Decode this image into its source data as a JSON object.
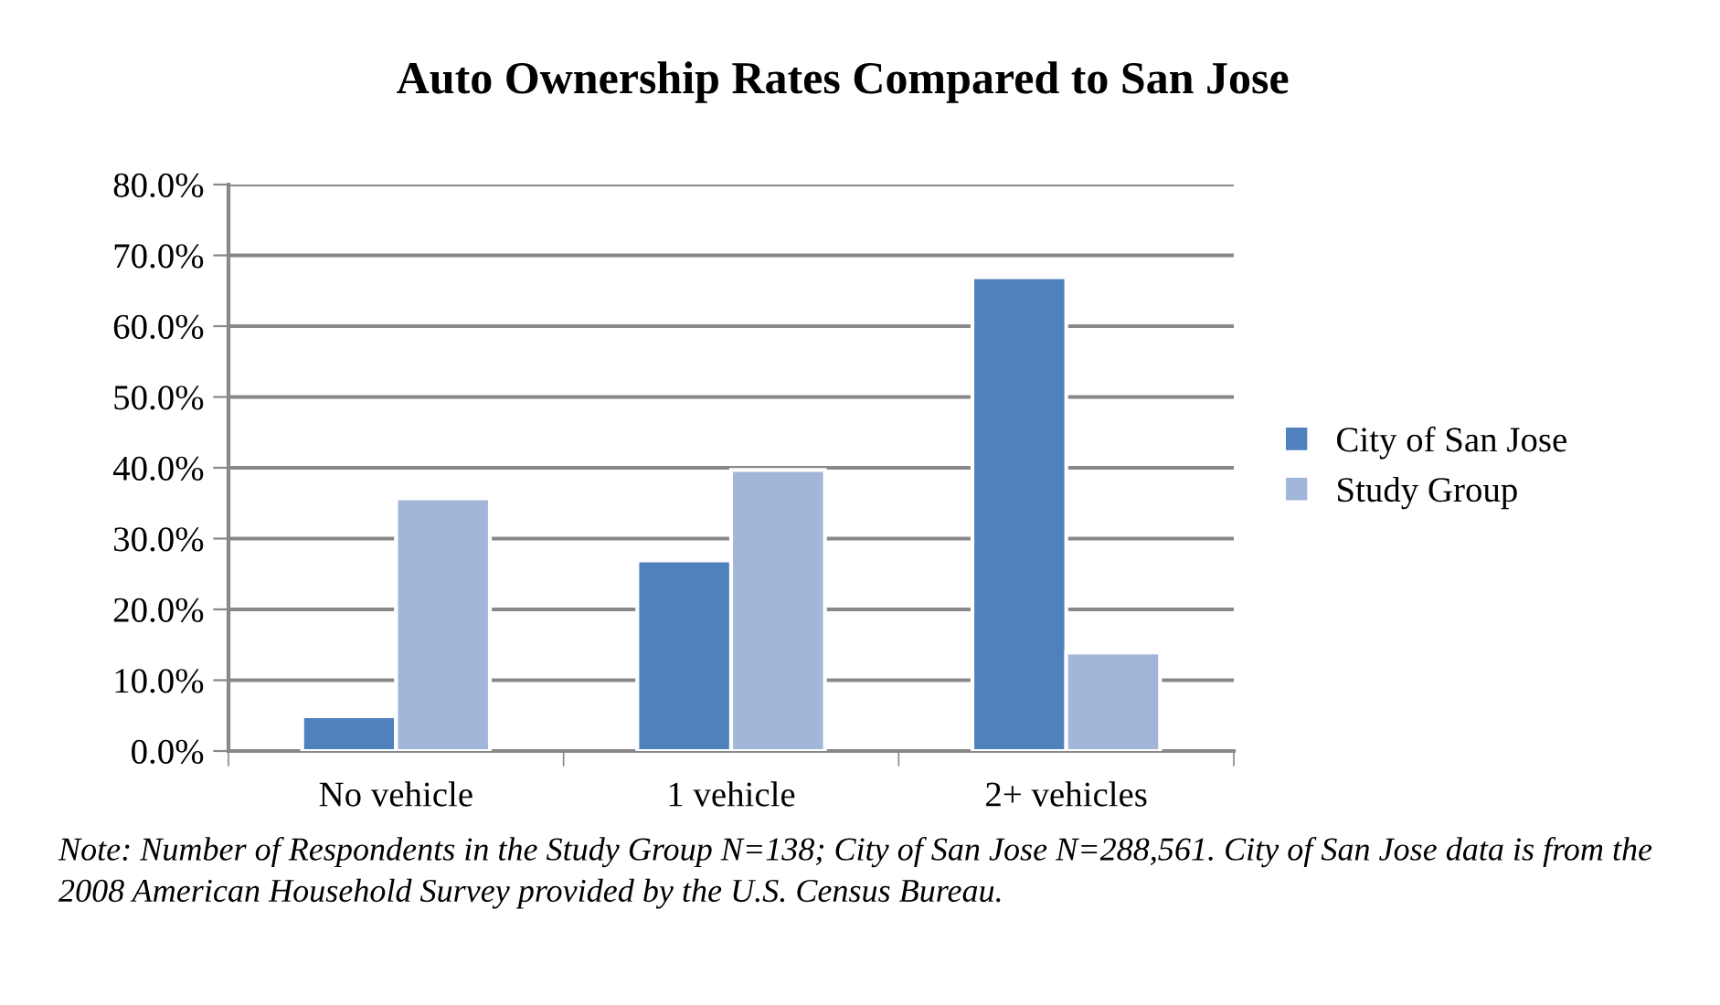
{
  "chart_data": {
    "type": "bar",
    "title": "Auto Ownership Rates Compared to San Jose",
    "categories": [
      "No vehicle",
      "1 vehicle",
      "2+ vehicles"
    ],
    "series": [
      {
        "name": "City of San Jose",
        "color": "#4f81bd",
        "values": [
          4.9,
          26.9,
          66.9
        ]
      },
      {
        "name": "Study Group",
        "color": "#a2b6da",
        "values": [
          35.7,
          39.7,
          13.9
        ]
      }
    ],
    "ylim": [
      0,
      80
    ],
    "yticks": [
      {
        "value": 0,
        "label": "0.0%"
      },
      {
        "value": 10,
        "label": "10.0%"
      },
      {
        "value": 20,
        "label": "20.0%"
      },
      {
        "value": 30,
        "label": "30.0%"
      },
      {
        "value": 40,
        "label": "40.0%"
      },
      {
        "value": 50,
        "label": "50.0%"
      },
      {
        "value": 60,
        "label": "60.0%"
      },
      {
        "value": 70,
        "label": "70.0%"
      },
      {
        "value": 80,
        "label": "80.0%"
      }
    ],
    "grid": "y",
    "legend": "right",
    "annotations": [
      "Note: Number of Respondents in the Study Group N=138; City of San Jose N=288,561. City of San Jose data is from the 2008 American Household Survey provided by the U.S. Census Bureau."
    ]
  }
}
